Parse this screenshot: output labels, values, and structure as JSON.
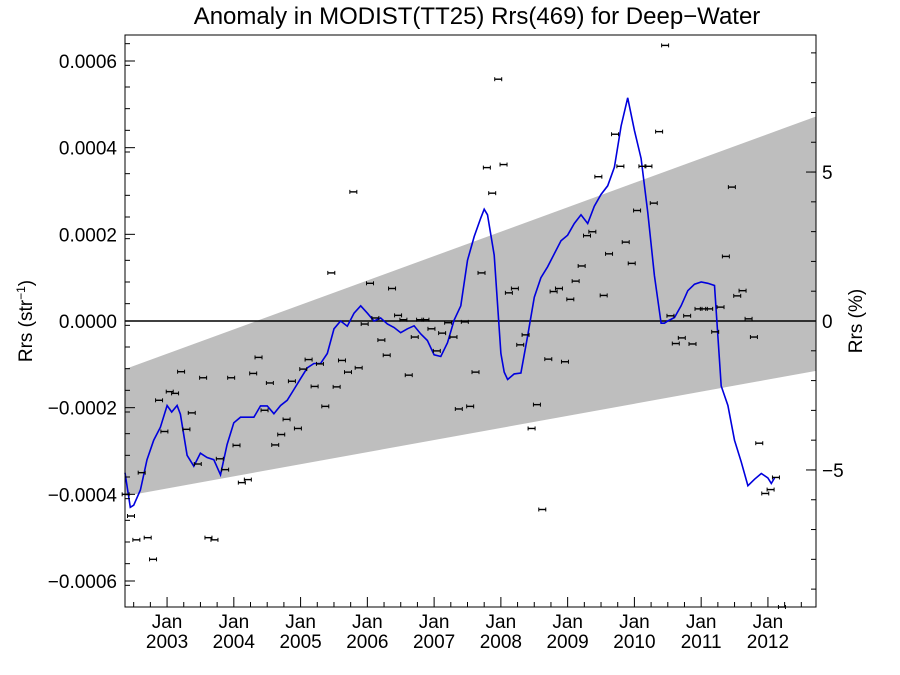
{
  "chart_data": {
    "type": "line",
    "title": "Anomaly in MODIST(TT25) Rrs(469) for Deep−Water",
    "ylabel_left": {
      "base": "Rrs (str",
      "sup": "−1",
      "close": ")"
    },
    "ylabel_right": "Rrs (%)",
    "xlim": [
      2002.37,
      2012.72
    ],
    "ylim": [
      -0.00066,
      0.00066
    ],
    "y2lim": [
      -9.6,
      9.6
    ],
    "grid": false,
    "x_ticks": [
      {
        "top": "Jan",
        "bottom": "2003",
        "x": 2003.0
      },
      {
        "top": "Jan",
        "bottom": "2004",
        "x": 2004.0
      },
      {
        "top": "Jan",
        "bottom": "2005",
        "x": 2005.0
      },
      {
        "top": "Jan",
        "bottom": "2006",
        "x": 2006.0
      },
      {
        "top": "Jan",
        "bottom": "2007",
        "x": 2007.0
      },
      {
        "top": "Jan",
        "bottom": "2008",
        "x": 2008.0
      },
      {
        "top": "Jan",
        "bottom": "2009",
        "x": 2009.0
      },
      {
        "top": "Jan",
        "bottom": "2010",
        "x": 2010.0
      },
      {
        "top": "Jan",
        "bottom": "2011",
        "x": 2011.0
      },
      {
        "top": "Jan",
        "bottom": "2012",
        "x": 2012.0
      }
    ],
    "y_ticks": [
      {
        "v": 0.0006,
        "label": "0.0006"
      },
      {
        "v": 0.0004,
        "label": "0.0004"
      },
      {
        "v": 0.0002,
        "label": "0.0002"
      },
      {
        "v": 0.0,
        "label": "0.0000"
      },
      {
        "v": -0.0002,
        "label": "−0.0002"
      },
      {
        "v": -0.0004,
        "label": "−0.0004"
      },
      {
        "v": -0.0006,
        "label": "−0.0006"
      }
    ],
    "y2_ticks": [
      {
        "v": 5,
        "label": "5"
      },
      {
        "v": 0,
        "label": "0"
      },
      {
        "v": -5,
        "label": "−5"
      }
    ],
    "band": {
      "x": [
        2002.37,
        2012.72
      ],
      "upper": [
        -0.000111,
        0.000472
      ],
      "lower": [
        -0.000404,
        -0.000115
      ]
    },
    "zero_line": 0,
    "colors": {
      "band": "#bebebe",
      "smooth_line": "#0000dd",
      "points": "#000000",
      "zero_line": "#000000"
    },
    "points": {
      "name": "monthly anomaly",
      "data": [
        [
          2002.38,
          -0.0004
        ],
        [
          2002.46,
          -0.00045
        ],
        [
          2002.54,
          -0.000505
        ],
        [
          2002.62,
          -0.00035
        ],
        [
          2002.71,
          -0.0005
        ],
        [
          2002.79,
          -0.00055
        ],
        [
          2002.88,
          -0.000183
        ],
        [
          2002.96,
          -0.000255
        ],
        [
          2003.04,
          -0.000163
        ],
        [
          2003.12,
          -0.000167
        ],
        [
          2003.21,
          -0.000117
        ],
        [
          2003.29,
          -0.00025
        ],
        [
          2003.37,
          -0.000212
        ],
        [
          2003.46,
          -0.00033
        ],
        [
          2003.54,
          -0.000131
        ],
        [
          2003.62,
          -0.0005
        ],
        [
          2003.71,
          -0.000505
        ],
        [
          2003.79,
          -0.000318
        ],
        [
          2003.87,
          -0.000343
        ],
        [
          2003.96,
          -0.000131
        ],
        [
          2004.04,
          -0.000287
        ],
        [
          2004.12,
          -0.000373
        ],
        [
          2004.21,
          -0.000366
        ],
        [
          2004.29,
          -0.000121
        ],
        [
          2004.37,
          -8.4e-05
        ],
        [
          2004.46,
          -0.000206
        ],
        [
          2004.54,
          -0.000143
        ],
        [
          2004.62,
          -0.000286
        ],
        [
          2004.71,
          -0.000262
        ],
        [
          2004.79,
          -0.000227
        ],
        [
          2004.87,
          -0.000139
        ],
        [
          2004.96,
          -0.000248
        ],
        [
          2005.04,
          -0.000111
        ],
        [
          2005.12,
          -8.9e-05
        ],
        [
          2005.21,
          -0.000151
        ],
        [
          2005.29,
          -9.9e-05
        ],
        [
          2005.37,
          -0.000197
        ],
        [
          2005.46,
          0.000111
        ],
        [
          2005.54,
          -0.000152
        ],
        [
          2005.62,
          -9.1e-05
        ],
        [
          2005.71,
          -0.000118
        ],
        [
          2005.79,
          0.000298
        ],
        [
          2005.87,
          -0.000108
        ],
        [
          2005.96,
          -7e-06
        ],
        [
          2006.04,
          8.7e-05
        ],
        [
          2006.12,
          7e-06
        ],
        [
          2006.21,
          -4.4e-05
        ],
        [
          2006.29,
          -7.9e-05
        ],
        [
          2006.37,
          7.5e-05
        ],
        [
          2006.46,
          1.3e-05
        ],
        [
          2006.54,
          3e-06
        ],
        [
          2006.62,
          -0.000125
        ],
        [
          2006.71,
          -3.7e-05
        ],
        [
          2006.79,
          3e-06
        ],
        [
          2006.87,
          3e-06
        ],
        [
          2006.96,
          -1.8e-05
        ],
        [
          2007.04,
          -6.9e-05
        ],
        [
          2007.12,
          -2.8e-05
        ],
        [
          2007.21,
          -4e-06
        ],
        [
          2007.29,
          -3.7e-05
        ],
        [
          2007.37,
          -0.000203
        ],
        [
          2007.46,
          -2e-06
        ],
        [
          2007.54,
          -0.000197
        ],
        [
          2007.62,
          -0.000118
        ],
        [
          2007.71,
          0.000111
        ],
        [
          2007.79,
          0.000354
        ],
        [
          2007.87,
          0.000295
        ],
        [
          2007.96,
          0.000558
        ],
        [
          2008.04,
          0.000361
        ],
        [
          2008.12,
          6.5e-05
        ],
        [
          2008.21,
          7.5e-05
        ],
        [
          2008.29,
          -5.5e-05
        ],
        [
          2008.37,
          -3.2e-05
        ],
        [
          2008.46,
          -0.000248
        ],
        [
          2008.54,
          -0.000193
        ],
        [
          2008.62,
          -0.000435
        ],
        [
          2008.71,
          -8.8e-05
        ],
        [
          2008.79,
          6.8e-05
        ],
        [
          2008.87,
          7.5e-05
        ],
        [
          2008.96,
          -9.4e-05
        ],
        [
          2009.04,
          5e-05
        ],
        [
          2009.12,
          9.2e-05
        ],
        [
          2009.21,
          0.000127
        ],
        [
          2009.29,
          0.000197
        ],
        [
          2009.37,
          0.000206
        ],
        [
          2009.46,
          0.000333
        ],
        [
          2009.54,
          5.9e-05
        ],
        [
          2009.62,
          0.000155
        ],
        [
          2009.71,
          0.000431
        ],
        [
          2009.79,
          0.000357
        ],
        [
          2009.87,
          0.000182
        ],
        [
          2009.96,
          0.000133
        ],
        [
          2010.04,
          0.000255
        ],
        [
          2010.12,
          0.000357
        ],
        [
          2010.21,
          0.000357
        ],
        [
          2010.29,
          0.000272
        ],
        [
          2010.37,
          0.000437
        ],
        [
          2010.46,
          0.000636
        ],
        [
          2010.54,
          1.2e-05
        ],
        [
          2010.62,
          -5.2e-05
        ],
        [
          2010.71,
          -3.9e-05
        ],
        [
          2010.79,
          1.2e-05
        ],
        [
          2010.87,
          -5.3e-05
        ],
        [
          2010.96,
          2.8e-05
        ],
        [
          2011.04,
          2.8e-05
        ],
        [
          2011.12,
          2.8e-05
        ],
        [
          2011.21,
          -2.5e-05
        ],
        [
          2011.29,
          3.2e-05
        ],
        [
          2011.37,
          0.000149
        ],
        [
          2011.46,
          0.000309
        ],
        [
          2011.54,
          5.8e-05
        ],
        [
          2011.62,
          7e-05
        ],
        [
          2011.71,
          5e-06
        ],
        [
          2011.79,
          -3.7e-05
        ],
        [
          2011.87,
          -0.000282
        ],
        [
          2011.96,
          -0.000398
        ],
        [
          2012.04,
          -0.000389
        ],
        [
          2012.12,
          -0.000361
        ],
        [
          2012.21,
          -0.00066
        ]
      ]
    },
    "smooth": {
      "name": "smoothed",
      "x": [
        2002.37,
        2002.45,
        2002.5,
        2002.6,
        2002.7,
        2002.8,
        2002.9,
        2003.0,
        2003.07,
        2003.15,
        2003.2,
        2003.3,
        2003.4,
        2003.5,
        2003.6,
        2003.7,
        2003.8,
        2003.9,
        2004.0,
        2004.1,
        2004.2,
        2004.3,
        2004.4,
        2004.5,
        2004.6,
        2004.7,
        2004.8,
        2004.9,
        2005.0,
        2005.1,
        2005.2,
        2005.3,
        2005.4,
        2005.5,
        2005.6,
        2005.7,
        2005.8,
        2005.9,
        2006.0,
        2006.1,
        2006.2,
        2006.3,
        2006.4,
        2006.5,
        2006.6,
        2006.7,
        2006.8,
        2006.9,
        2007.0,
        2007.1,
        2007.2,
        2007.3,
        2007.4,
        2007.5,
        2007.6,
        2007.7,
        2007.75,
        2007.8,
        2007.9,
        2008.0,
        2008.05,
        2008.1,
        2008.2,
        2008.3,
        2008.4,
        2008.5,
        2008.6,
        2008.7,
        2008.8,
        2008.9,
        2009.0,
        2009.1,
        2009.2,
        2009.3,
        2009.4,
        2009.5,
        2009.6,
        2009.7,
        2009.8,
        2009.9,
        2010.0,
        2010.1,
        2010.2,
        2010.3,
        2010.4,
        2010.45,
        2010.5,
        2010.6,
        2010.7,
        2010.8,
        2010.9,
        2011.0,
        2011.1,
        2011.2,
        2011.3,
        2011.4,
        2011.5,
        2011.6,
        2011.7,
        2011.8,
        2011.9,
        2012.0,
        2012.05,
        2012.1
      ],
      "y": [
        -0.00035,
        -0.00043,
        -0.000425,
        -0.00039,
        -0.00032,
        -0.000275,
        -0.000245,
        -0.000195,
        -0.00021,
        -0.000195,
        -0.000215,
        -0.00031,
        -0.000335,
        -0.000305,
        -0.000315,
        -0.00032,
        -0.000355,
        -0.000285,
        -0.000235,
        -0.000222,
        -0.000222,
        -0.000222,
        -0.000196,
        -0.000196,
        -0.000214,
        -0.000195,
        -0.000183,
        -0.000158,
        -0.000133,
        -0.000108,
        -9.8e-05,
        -9.8e-05,
        -7.5e-05,
        -1.8e-05,
        0.0,
        -1.2e-05,
        1.8e-05,
        3.5e-05,
        1.8e-05,
        0.0,
        7e-06,
        -7e-06,
        -1.5e-05,
        -2.7e-05,
        -1.8e-05,
        -1.1e-05,
        -3e-05,
        -4.5e-05,
        -7.8e-05,
        -8.2e-05,
        -5e-05,
        2e-06,
        3.5e-05,
        0.00014,
        0.000195,
        0.000238,
        0.000258,
        0.000245,
        0.000152,
        -7.5e-05,
        -0.000118,
        -0.000135,
        -0.000122,
        -0.00012,
        -3.5e-05,
        5.5e-05,
        0.0001,
        0.000125,
        0.000155,
        0.000185,
        0.000198,
        0.000225,
        0.000245,
        0.000225,
        0.000265,
        0.000292,
        0.000312,
        0.000355,
        0.00045,
        0.000515,
        0.00044,
        0.000375,
        0.00025,
        0.000105,
        -5e-06,
        -5e-06,
        0.0,
        8e-06,
        3.5e-05,
        7e-05,
        8.5e-05,
        9e-05,
        8.7e-05,
        8.2e-05,
        -0.00015,
        -0.000195,
        -0.000275,
        -0.000325,
        -0.00038,
        -0.000365,
        -0.000352,
        -0.000362,
        -0.000375,
        -0.000362
      ]
    }
  }
}
